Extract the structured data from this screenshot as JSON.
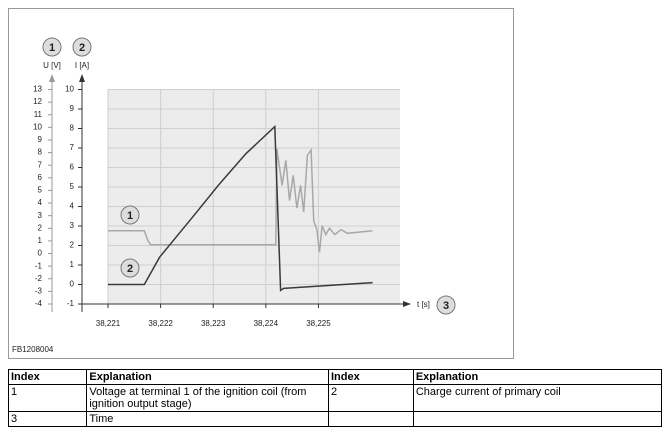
{
  "chart_data": {
    "type": "line",
    "figure_id": "FB1208004",
    "y_index": "1",
    "ylabel": "U [V]",
    "y2_index": "2",
    "y2label": "I [A]",
    "x_index": "3",
    "xlabel": "t [s]",
    "xlim": [
      38.221,
      38.22655
    ],
    "xticks": [
      {
        "value": 38.221,
        "label": "38,221"
      },
      {
        "value": 38.222,
        "label": "38,222"
      },
      {
        "value": 38.223,
        "label": "38,223"
      },
      {
        "value": 38.224,
        "label": "38,224"
      },
      {
        "value": 38.225,
        "label": "38,225"
      }
    ],
    "ylim": [
      -4,
      13
    ],
    "yticks": [
      -4,
      -3,
      -2,
      -1,
      0,
      1,
      2,
      3,
      4,
      5,
      6,
      7,
      8,
      9,
      10,
      11,
      12,
      13
    ],
    "y2lim": [
      -1,
      10
    ],
    "y2ticks": [
      -1,
      0,
      1,
      2,
      3,
      4,
      5,
      6,
      7,
      8,
      9,
      10
    ],
    "grid": true,
    "series": [
      {
        "name": "1",
        "color": "#a8a8a8",
        "x": [
          38.221,
          38.22169,
          38.22176,
          38.22181,
          38.22419,
          38.22421,
          38.22431,
          38.22438,
          38.22445,
          38.22452,
          38.22459,
          38.22466,
          38.22472,
          38.22479,
          38.22486,
          38.22491,
          38.22497,
          38.22502,
          38.22507,
          38.22514,
          38.22521,
          38.22531,
          38.22543,
          38.22555,
          38.22603
        ],
        "values": [
          1.8,
          1.8,
          1.0,
          0.7,
          0.7,
          8.3,
          5.4,
          7.4,
          4.2,
          6.2,
          3.6,
          5.4,
          3.3,
          7.8,
          8.2,
          2.6,
          1.9,
          0.1,
          2.2,
          1.5,
          2.0,
          1.5,
          1.9,
          1.6,
          1.8
        ]
      },
      {
        "name": "2",
        "color": "#3a3a3a",
        "axis": "y2",
        "x": [
          38.221,
          38.22169,
          38.22198,
          38.22259,
          38.2231,
          38.22362,
          38.22417,
          38.22428,
          38.22434,
          38.22603
        ],
        "values": [
          0,
          0,
          1.4,
          3.4,
          5.1,
          6.7,
          8.1,
          -0.3,
          -0.2,
          0.1
        ]
      }
    ]
  },
  "table": {
    "header": [
      "Index",
      "Explanation",
      "Index",
      "Explanation"
    ],
    "rows": [
      [
        "1",
        "Voltage at terminal 1 of the ignition coil (from ignition output stage)",
        "2",
        "Charge current of primary coil"
      ],
      [
        "3",
        "Time",
        "",
        ""
      ]
    ]
  }
}
